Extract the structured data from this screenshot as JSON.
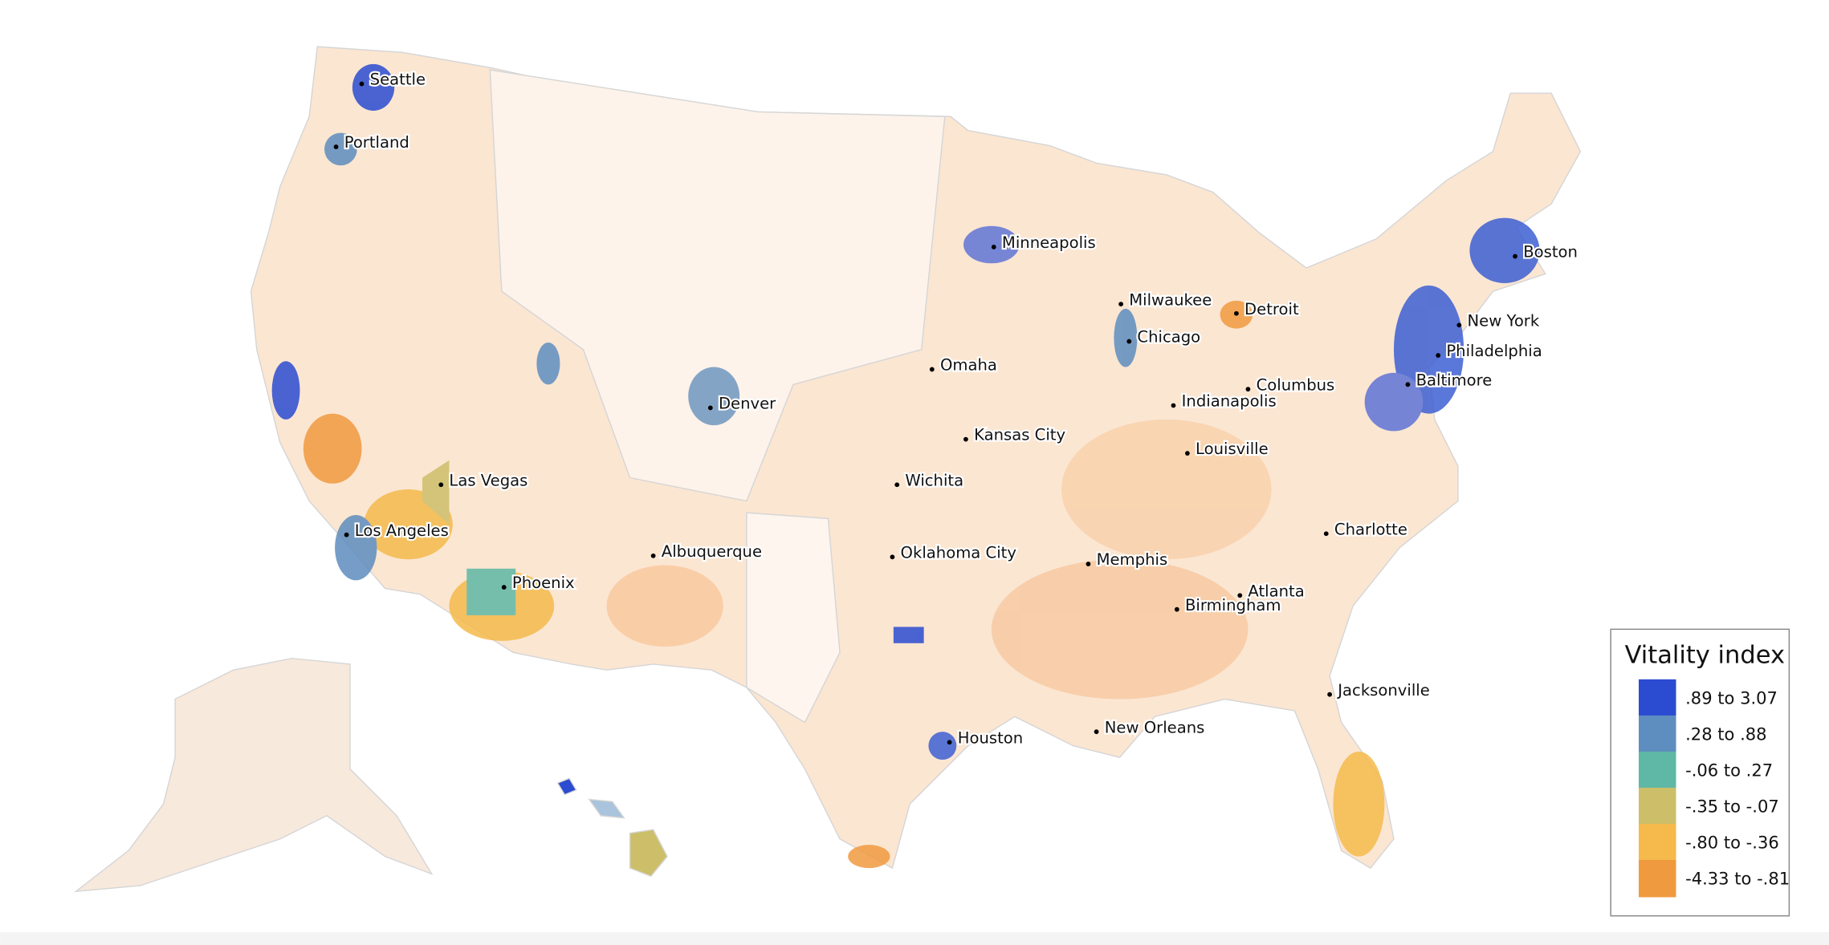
{
  "legend": {
    "title": "Vitality index",
    "items": [
      {
        "label": ".89 to 3.07",
        "color": "#2b4bd1"
      },
      {
        "label": ".28 to .88",
        "color": "#5e8dbf"
      },
      {
        "label": "-.06 to .27",
        "color": "#5fb8a6"
      },
      {
        "label": "-.35 to -.07",
        "color": "#cdbf6a"
      },
      {
        "label": "-.80 to -.36",
        "color": "#f5ba4b"
      },
      {
        "label": "-4.33 to -.81",
        "color": "#f09a40"
      }
    ]
  },
  "cities": [
    "Seattle",
    "Portland",
    "Minneapolis",
    "Boston",
    "Milwaukee",
    "Detroit",
    "New York",
    "Chicago",
    "Philadelphia",
    "Omaha",
    "Columbus",
    "Baltimore",
    "Denver",
    "Indianapolis",
    "Kansas City",
    "Louisville",
    "Las Vegas",
    "Wichita",
    "Los Angeles",
    "Charlotte",
    "Albuquerque",
    "Oklahoma City",
    "Memphis",
    "Phoenix",
    "Atlanta",
    "Birmingham",
    "Jacksonville",
    "Houston",
    "New Orleans"
  ]
}
